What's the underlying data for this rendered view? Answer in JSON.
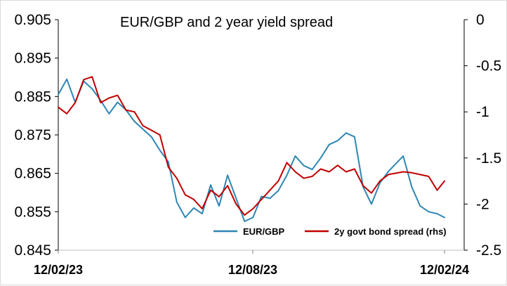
{
  "chart_data": {
    "type": "line",
    "title": "EUR/GBP and 2 year yield spread",
    "xlabel": "",
    "ylabel": "",
    "ylabel_right": "",
    "x_start": "2023-02-12",
    "x_end": "2024-02-12",
    "x_tick_labels": [
      "12/02/23",
      "12/08/23",
      "12/02/24"
    ],
    "ylim_left": [
      0.845,
      0.905
    ],
    "y_ticks_left": [
      "0.905",
      "0.895",
      "0.885",
      "0.875",
      "0.865",
      "0.855",
      "0.845"
    ],
    "ylim_right": [
      -2.5,
      0
    ],
    "y_ticks_right": [
      "0",
      "-0.5",
      "-1",
      "-1.5",
      "-2",
      "-2.5"
    ],
    "grid": false,
    "legend_position": "bottom",
    "colors": {
      "eurgbp": "#2E86B4",
      "spread": "#C00000"
    },
    "series": [
      {
        "name": "EUR/GBP",
        "axis": "left",
        "points": [
          [
            "2023-02-12",
            0.8855
          ],
          [
            "2023-02-20",
            0.8895
          ],
          [
            "2023-02-28",
            0.8835
          ],
          [
            "2023-03-08",
            0.889
          ],
          [
            "2023-03-16",
            0.887
          ],
          [
            "2023-03-24",
            0.884
          ],
          [
            "2023-04-01",
            0.8805
          ],
          [
            "2023-04-09",
            0.8835
          ],
          [
            "2023-04-17",
            0.8815
          ],
          [
            "2023-04-25",
            0.8785
          ],
          [
            "2023-05-03",
            0.8765
          ],
          [
            "2023-05-11",
            0.8745
          ],
          [
            "2023-05-19",
            0.871
          ],
          [
            "2023-05-27",
            0.868
          ],
          [
            "2023-06-04",
            0.8575
          ],
          [
            "2023-06-12",
            0.8535
          ],
          [
            "2023-06-20",
            0.856
          ],
          [
            "2023-06-28",
            0.8545
          ],
          [
            "2023-07-06",
            0.862
          ],
          [
            "2023-07-14",
            0.8565
          ],
          [
            "2023-07-22",
            0.8645
          ],
          [
            "2023-07-30",
            0.8585
          ],
          [
            "2023-08-07",
            0.8525
          ],
          [
            "2023-08-15",
            0.8535
          ],
          [
            "2023-08-23",
            0.859
          ],
          [
            "2023-08-31",
            0.8585
          ],
          [
            "2023-09-08",
            0.8605
          ],
          [
            "2023-09-16",
            0.8645
          ],
          [
            "2023-09-24",
            0.8695
          ],
          [
            "2023-10-02",
            0.867
          ],
          [
            "2023-10-10",
            0.866
          ],
          [
            "2023-10-18",
            0.869
          ],
          [
            "2023-10-26",
            0.8725
          ],
          [
            "2023-11-03",
            0.8735
          ],
          [
            "2023-11-11",
            0.8755
          ],
          [
            "2023-11-19",
            0.8745
          ],
          [
            "2023-11-27",
            0.8615
          ],
          [
            "2023-12-05",
            0.857
          ],
          [
            "2023-12-13",
            0.8625
          ],
          [
            "2023-12-21",
            0.8655
          ],
          [
            "2024-01-04",
            0.8695
          ],
          [
            "2024-01-12",
            0.8615
          ],
          [
            "2024-01-20",
            0.8565
          ],
          [
            "2024-01-28",
            0.855
          ],
          [
            "2024-02-05",
            0.8545
          ],
          [
            "2024-02-12",
            0.8535
          ]
        ]
      },
      {
        "name": "2y govt bond spread (rhs)",
        "axis": "right",
        "points": [
          [
            "2023-02-12",
            -0.95
          ],
          [
            "2023-02-20",
            -1.02
          ],
          [
            "2023-02-28",
            -0.9
          ],
          [
            "2023-03-08",
            -0.65
          ],
          [
            "2023-03-16",
            -0.62
          ],
          [
            "2023-03-24",
            -0.9
          ],
          [
            "2023-04-01",
            -0.85
          ],
          [
            "2023-04-09",
            -0.82
          ],
          [
            "2023-04-17",
            -0.98
          ],
          [
            "2023-04-25",
            -1.0
          ],
          [
            "2023-05-03",
            -1.15
          ],
          [
            "2023-05-11",
            -1.2
          ],
          [
            "2023-05-19",
            -1.25
          ],
          [
            "2023-05-27",
            -1.6
          ],
          [
            "2023-06-04",
            -1.72
          ],
          [
            "2023-06-12",
            -1.9
          ],
          [
            "2023-06-20",
            -1.95
          ],
          [
            "2023-06-28",
            -2.05
          ],
          [
            "2023-07-06",
            -1.85
          ],
          [
            "2023-07-14",
            -1.92
          ],
          [
            "2023-07-22",
            -1.8
          ],
          [
            "2023-07-30",
            -2.0
          ],
          [
            "2023-08-07",
            -2.12
          ],
          [
            "2023-08-15",
            -2.05
          ],
          [
            "2023-08-23",
            -1.95
          ],
          [
            "2023-08-31",
            -1.85
          ],
          [
            "2023-09-08",
            -1.75
          ],
          [
            "2023-09-16",
            -1.55
          ],
          [
            "2023-09-24",
            -1.65
          ],
          [
            "2023-10-02",
            -1.72
          ],
          [
            "2023-10-10",
            -1.7
          ],
          [
            "2023-10-18",
            -1.62
          ],
          [
            "2023-10-26",
            -1.65
          ],
          [
            "2023-11-03",
            -1.58
          ],
          [
            "2023-11-11",
            -1.65
          ],
          [
            "2023-11-19",
            -1.62
          ],
          [
            "2023-11-27",
            -1.8
          ],
          [
            "2023-12-05",
            -1.88
          ],
          [
            "2023-12-13",
            -1.75
          ],
          [
            "2023-12-21",
            -1.68
          ],
          [
            "2024-01-04",
            -1.65
          ],
          [
            "2024-01-12",
            -1.66
          ],
          [
            "2024-01-20",
            -1.68
          ],
          [
            "2024-01-28",
            -1.7
          ],
          [
            "2024-02-05",
            -1.85
          ],
          [
            "2024-02-12",
            -1.75
          ]
        ]
      }
    ]
  }
}
